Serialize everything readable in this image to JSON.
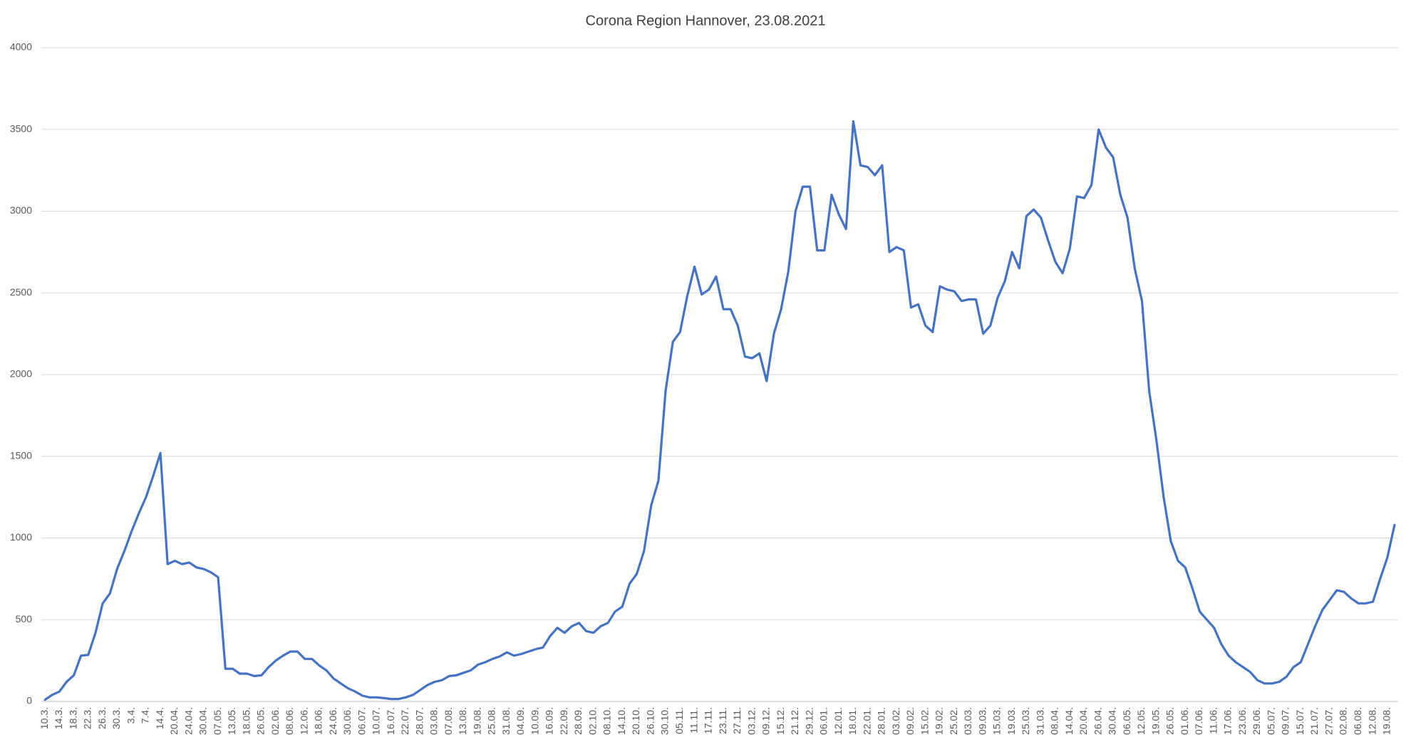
{
  "chart_data": {
    "type": "line",
    "title": "Corona Region Hannover, 23.08.2021",
    "categories": [
      "10.3.",
      null,
      "14.3.",
      null,
      "18.3.",
      null,
      "22.3.",
      null,
      "26.3.",
      null,
      "30.3.",
      null,
      "3.4.",
      null,
      "7.4.",
      null,
      "14.4.",
      null,
      "20.04.",
      null,
      "24.04.",
      null,
      "30.04.",
      null,
      "07.05.",
      null,
      "13.05.",
      null,
      "18.05.",
      null,
      "26.05.",
      null,
      "02.06.",
      null,
      "08.06.",
      null,
      "12.06.",
      null,
      "18.06.",
      null,
      "24.06.",
      null,
      "30.06.",
      null,
      "06.07.",
      null,
      "10.07.",
      null,
      "16.07.",
      null,
      "22.07.",
      null,
      "28.07.",
      null,
      "03.08.",
      null,
      "07.08.",
      null,
      "13.08.",
      null,
      "19.08.",
      null,
      "25.08.",
      null,
      "31.08.",
      null,
      "04.09.",
      null,
      "10.09.",
      null,
      "16.09.",
      null,
      "22.09.",
      null,
      "28.09.",
      null,
      "02.10.",
      null,
      "08.10.",
      null,
      "14.10.",
      null,
      "20.10.",
      null,
      "26.10.",
      null,
      "30.10.",
      null,
      "05.11.",
      null,
      "11.11.",
      null,
      "17.11.",
      null,
      "23.11.",
      null,
      "27.11.",
      null,
      "03.12.",
      null,
      "09.12.",
      null,
      "15.12.",
      null,
      "21.12.",
      null,
      "29.12.",
      null,
      "06.01.",
      null,
      "12.01.",
      null,
      "18.01.",
      null,
      "22.01.",
      null,
      "28.01.",
      null,
      "03.02.",
      null,
      "09.02.",
      null,
      "15.02.",
      null,
      "19.02.",
      null,
      "25.02.",
      null,
      "03.03.",
      null,
      "09.03.",
      null,
      "15.03.",
      null,
      "19.03.",
      null,
      "25.03.",
      null,
      "31.03.",
      null,
      "08.04.",
      null,
      "14.04.",
      null,
      "20.04.",
      null,
      "26.04.",
      null,
      "30.04.",
      null,
      "06.05.",
      null,
      "12.05.",
      null,
      "19.05.",
      null,
      "26.05.",
      null,
      "01.06.",
      null,
      "07.06.",
      null,
      "11.06.",
      null,
      "17.06.",
      null,
      "23.06.",
      null,
      "29.06.",
      null,
      "05.07.",
      null,
      "09.07.",
      null,
      "15.07.",
      null,
      "21.07.",
      null,
      "27.07.",
      null,
      "02.08.",
      null,
      "06.08.",
      null,
      "12.08.",
      null,
      "19.08.",
      null
    ],
    "values": [
      10,
      40,
      60,
      120,
      160,
      280,
      285,
      420,
      600,
      660,
      810,
      920,
      1040,
      1150,
      1250,
      1380,
      1520,
      840,
      860,
      840,
      850,
      820,
      810,
      790,
      760,
      200,
      200,
      170,
      170,
      155,
      160,
      210,
      250,
      280,
      305,
      305,
      260,
      260,
      220,
      190,
      140,
      110,
      80,
      60,
      35,
      25,
      25,
      20,
      15,
      15,
      25,
      40,
      70,
      100,
      120,
      130,
      155,
      160,
      175,
      190,
      225,
      240,
      260,
      275,
      300,
      280,
      290,
      305,
      320,
      330,
      400,
      450,
      420,
      460,
      480,
      430,
      420,
      460,
      480,
      550,
      580,
      720,
      780,
      920,
      1200,
      1350,
      1900,
      2200,
      2260,
      2480,
      2660,
      2490,
      2520,
      2600,
      2400,
      2400,
      2300,
      2110,
      2100,
      2130,
      1960,
      2250,
      2400,
      2630,
      3000,
      3150,
      3150,
      2760,
      2760,
      3100,
      2980,
      2890,
      3550,
      3280,
      3270,
      3220,
      3280,
      2750,
      2780,
      2760,
      2410,
      2430,
      2300,
      2260,
      2540,
      2520,
      2510,
      2450,
      2460,
      2460,
      2250,
      2300,
      2470,
      2570,
      2750,
      2650,
      2970,
      3010,
      2960,
      2820,
      2690,
      2620,
      2770,
      3090,
      3080,
      3160,
      3500,
      3390,
      3330,
      3100,
      2960,
      2650,
      2450,
      1900,
      1600,
      1250,
      980,
      860,
      820,
      690,
      550,
      500,
      450,
      350,
      280,
      240,
      210,
      180,
      130,
      110,
      110,
      120,
      150,
      210,
      240,
      350,
      460,
      560,
      620,
      680,
      670,
      630,
      600,
      600,
      610,
      750,
      880,
      1080
    ],
    "color": "#4472c4",
    "ylim": [
      0,
      4000
    ],
    "yticks": [
      0,
      500,
      1000,
      1500,
      2000,
      2500,
      3000,
      3500,
      4000
    ],
    "grid": true
  }
}
